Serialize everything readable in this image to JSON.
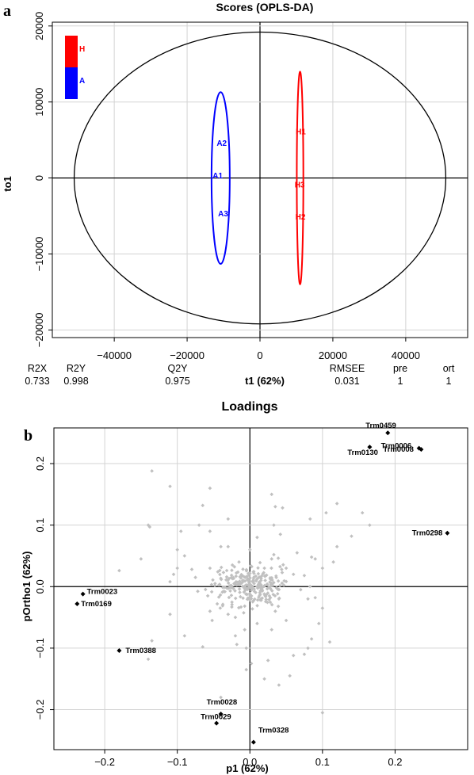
{
  "panel_a_letter": "a",
  "panel_b_letter": "b",
  "chart_data": [
    {
      "type": "scatter",
      "title": "Scores (OPLS-DA)",
      "xlabel": "t1 (62%)",
      "ylabel": "to1",
      "xlim": [
        -57000,
        57000
      ],
      "ylim": [
        -21000,
        20500
      ],
      "xticks": [
        -40000,
        -20000,
        0,
        20000,
        40000
      ],
      "yticks": [
        -20000,
        -10000,
        0,
        10000,
        20000
      ],
      "grid": true,
      "legend": {
        "position": "top-left",
        "entries": [
          {
            "label": "H",
            "color": "#ff0000"
          },
          {
            "label": "A",
            "color": "#0000ff"
          }
        ]
      },
      "hotelling_ellipse": {
        "center": [
          0,
          0
        ],
        "rx": 51000,
        "ry": 19200
      },
      "series": [
        {
          "name": "H",
          "color": "#ff0000",
          "points": [
            {
              "label": "H1",
              "x": 11200,
              "y": 6100
            },
            {
              "label": "H3",
              "x": 10900,
              "y": -900
            },
            {
              "label": "H2",
              "x": 11100,
              "y": -5100
            }
          ],
          "ellipse": {
            "cx": 11000,
            "cy": 0,
            "rx": 900,
            "ry": 14000
          }
        },
        {
          "name": "A",
          "color": "#0000ff",
          "points": [
            {
              "label": "A2",
              "x": -10500,
              "y": 4600
            },
            {
              "label": "A1",
              "x": -11600,
              "y": 300
            },
            {
              "label": "A3",
              "x": -10100,
              "y": -4700
            }
          ],
          "ellipse": {
            "cx": -10800,
            "cy": 0,
            "rx": 2500,
            "ry": 11300
          }
        }
      ],
      "summary_table": {
        "headers": [
          "R2X",
          "R2Y",
          "Q2Y",
          "RMSEE",
          "pre",
          "ort"
        ],
        "values": [
          "0.733",
          "0.998",
          "0.975",
          "0.031",
          "1",
          "1"
        ]
      }
    },
    {
      "type": "scatter",
      "title": "Loadings",
      "xlabel": "p1 (62%)",
      "ylabel": "pOrtho1 (62%)",
      "xlim": [
        -0.27,
        0.3
      ],
      "ylim": [
        -0.265,
        0.258
      ],
      "xticks": [
        -0.2,
        -0.1,
        0.0,
        0.1,
        0.2
      ],
      "yticks": [
        -0.2,
        -0.1,
        0.0,
        0.1,
        0.2
      ],
      "grid": true,
      "highlighted_color": "#000000",
      "background_color": "#c0c0c0",
      "highlighted": [
        {
          "label": "Trm0459",
          "x": 0.19,
          "y": 0.25
        },
        {
          "label": "Trm0006",
          "x": 0.233,
          "y": 0.225
        },
        {
          "label": "Trm0008",
          "x": 0.236,
          "y": 0.223
        },
        {
          "label": "Trm0130",
          "x": 0.165,
          "y": 0.227
        },
        {
          "label": "Trm0298",
          "x": 0.272,
          "y": 0.087
        },
        {
          "label": "Trm0023",
          "x": -0.23,
          "y": -0.012
        },
        {
          "label": "Trm0169",
          "x": -0.238,
          "y": -0.028
        },
        {
          "label": "Trm0388",
          "x": -0.18,
          "y": -0.104
        },
        {
          "label": "Trm0028",
          "x": -0.04,
          "y": -0.207
        },
        {
          "label": "Trm0029",
          "x": -0.046,
          "y": -0.222
        },
        {
          "label": "Trm0328",
          "x": 0.005,
          "y": -0.253
        }
      ],
      "background_points": [
        [
          -0.135,
          0.188
        ],
        [
          -0.11,
          0.163
        ],
        [
          -0.14,
          0.1
        ],
        [
          -0.138,
          0.097
        ],
        [
          -0.055,
          0.16
        ],
        [
          -0.065,
          0.132
        ],
        [
          -0.095,
          0.09
        ],
        [
          -0.07,
          0.1
        ],
        [
          -0.055,
          0.09
        ],
        [
          -0.04,
          0.065
        ],
        [
          -0.03,
          0.065
        ],
        [
          -0.09,
          0.05
        ],
        [
          -0.1,
          0.06
        ],
        [
          -0.15,
          0.045
        ],
        [
          -0.18,
          0.026
        ],
        [
          -0.11,
          0.008
        ],
        [
          -0.075,
          0.015
        ],
        [
          -0.055,
          0.03
        ],
        [
          -0.048,
          0.005
        ],
        [
          -0.058,
          -0.015
        ],
        [
          -0.055,
          -0.04
        ],
        [
          -0.052,
          -0.055
        ],
        [
          -0.045,
          -0.028
        ],
        [
          -0.11,
          -0.045
        ],
        [
          -0.09,
          -0.08
        ],
        [
          -0.135,
          -0.088
        ],
        [
          -0.14,
          -0.118
        ],
        [
          -0.065,
          -0.098
        ],
        [
          -0.02,
          -0.08
        ],
        [
          -0.018,
          -0.094
        ],
        [
          -0.005,
          -0.135
        ],
        [
          -0.04,
          -0.18
        ],
        [
          0.033,
          0.1
        ],
        [
          0.042,
          0.085
        ],
        [
          0.033,
          0.052
        ],
        [
          0.03,
          0.045
        ],
        [
          0.05,
          0.03
        ],
        [
          0.06,
          0.02
        ],
        [
          0.075,
          0.018
        ],
        [
          0.08,
          -0.02
        ],
        [
          0.09,
          0.045
        ],
        [
          0.1,
          0.03
        ],
        [
          0.115,
          0.04
        ],
        [
          0.12,
          0.065
        ],
        [
          0.14,
          0.082
        ],
        [
          0.155,
          0.12
        ],
        [
          0.165,
          0.1
        ],
        [
          0.12,
          0.135
        ],
        [
          0.105,
          0.12
        ],
        [
          0.083,
          0.11
        ],
        [
          0.045,
          0.128
        ],
        [
          0.035,
          0.13
        ],
        [
          0.03,
          0.15
        ],
        [
          0.065,
          0.055
        ],
        [
          0.085,
          0.048
        ],
        [
          0.07,
          -0.005
        ],
        [
          0.09,
          -0.018
        ],
        [
          0.1,
          -0.035
        ],
        [
          0.095,
          -0.06
        ],
        [
          0.085,
          -0.085
        ],
        [
          0.08,
          -0.1
        ],
        [
          0.075,
          -0.11
        ],
        [
          0.06,
          -0.112
        ],
        [
          0.055,
          -0.145
        ],
        [
          0.04,
          -0.16
        ],
        [
          0.02,
          -0.15
        ],
        [
          0.03,
          -0.07
        ],
        [
          0.035,
          -0.04
        ],
        [
          0.025,
          -0.12
        ],
        [
          0.1,
          -0.205
        ],
        [
          -0.03,
          -0.045
        ],
        [
          -0.02,
          -0.05
        ],
        [
          0.01,
          -0.06
        ],
        [
          0.04,
          -0.02
        ],
        [
          -0.005,
          -0.1
        ],
        [
          0.002,
          -0.125
        ],
        [
          -0.03,
          0.11
        ],
        [
          -0.08,
          0.028
        ],
        [
          -0.1,
          0.03
        ],
        [
          0.02,
          0.03
        ],
        [
          0.0,
          0.06
        ],
        [
          0.01,
          0.08
        ],
        [
          -0.015,
          0.04
        ],
        [
          0.05,
          -0.055
        ],
        [
          0.11,
          -0.09
        ]
      ],
      "central_cluster": {
        "center": [
          0.0,
          0.0
        ],
        "spread_x": 0.025,
        "spread_y": 0.016,
        "count": 260
      }
    }
  ]
}
